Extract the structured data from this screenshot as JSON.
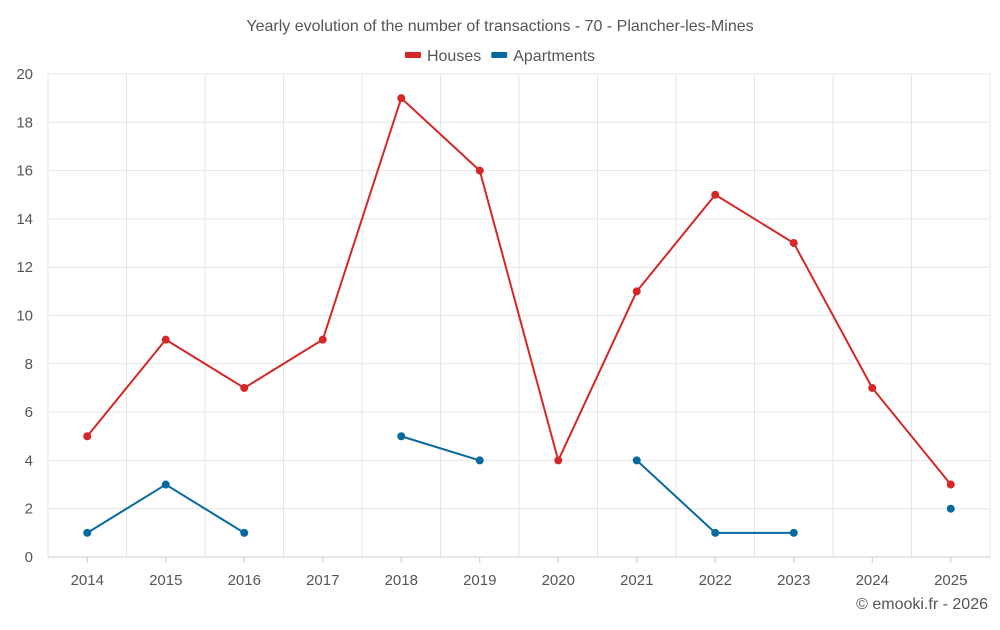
{
  "chart_data": {
    "type": "line",
    "title": "Yearly evolution of the number of transactions - 70 - Plancher-les-Mines",
    "xlabel": "",
    "ylabel": "",
    "categories": [
      "2014",
      "2015",
      "2016",
      "2017",
      "2018",
      "2019",
      "2020",
      "2021",
      "2022",
      "2023",
      "2024",
      "2025"
    ],
    "ylim": [
      0,
      20
    ],
    "yticks": [
      "0",
      "2",
      "4",
      "6",
      "8",
      "10",
      "12",
      "14",
      "16",
      "18",
      "20"
    ],
    "grid": true,
    "legend_position": "top-center",
    "series": [
      {
        "name": "Houses",
        "color": "#d62728",
        "values": [
          5,
          9,
          7,
          9,
          19,
          16,
          4,
          11,
          15,
          13,
          7,
          3
        ]
      },
      {
        "name": "Apartments",
        "color": "#066aa0",
        "values": [
          1,
          3,
          1,
          null,
          5,
          4,
          null,
          4,
          1,
          1,
          null,
          2
        ]
      }
    ],
    "credit": "© emooki.fr - 2026"
  }
}
